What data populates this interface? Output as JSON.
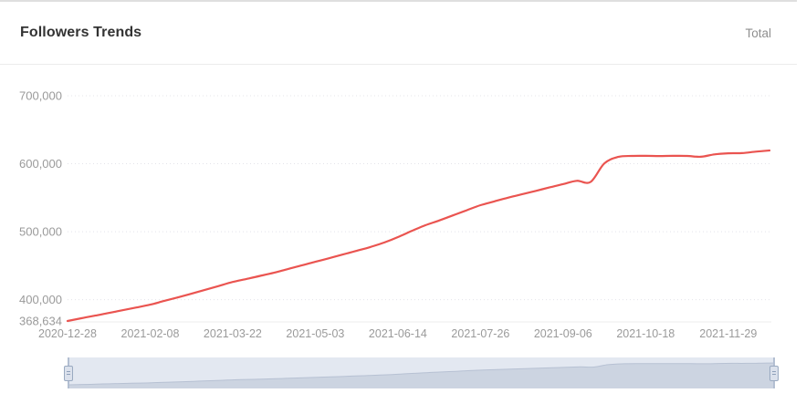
{
  "header": {
    "title": "Followers Trends",
    "legend_total": "Total"
  },
  "colors": {
    "line": "#ea5450",
    "grid": "#e4e4ea",
    "axis_line": "#ededed",
    "axis_text": "#9a9a9a",
    "title_text": "#333333",
    "legend_text": "#8f8f8f",
    "slider_track": "#e3e8f1",
    "slider_area_fill": "#ccd4e1",
    "slider_area_line": "#b7c1d3",
    "slider_handle": "#9aaac1"
  },
  "chart_data": {
    "type": "line",
    "title": "Followers Trends",
    "legend": [
      "Total"
    ],
    "legend_position": "top-right",
    "grid": "dotted-horizontal",
    "y_axis": {
      "min": 368634,
      "min_label": "368,634",
      "top": 700000
    },
    "y_ticks": [
      {
        "value": 700000,
        "label": "700,000",
        "grid": true
      },
      {
        "value": 600000,
        "label": "600,000",
        "grid": true
      },
      {
        "value": 500000,
        "label": "500,000",
        "grid": true
      },
      {
        "value": 400000,
        "label": "400,000",
        "grid": true
      },
      {
        "value": 368634,
        "label": "368,634",
        "grid": false
      }
    ],
    "x_ticks": [
      "2020-12-28",
      "2021-02-08",
      "2021-03-22",
      "2021-05-03",
      "2021-06-14",
      "2021-07-26",
      "2021-09-06",
      "2021-10-18",
      "2021-11-29"
    ],
    "x_tick_every_n_points": 6,
    "series": [
      {
        "name": "Total",
        "color": "#ea5450",
        "smooth": true,
        "x": [
          "2020-12-28",
          "2021-01-04",
          "2021-01-11",
          "2021-01-18",
          "2021-01-25",
          "2021-02-01",
          "2021-02-08",
          "2021-02-15",
          "2021-02-22",
          "2021-03-01",
          "2021-03-08",
          "2021-03-15",
          "2021-03-22",
          "2021-03-29",
          "2021-04-05",
          "2021-04-12",
          "2021-04-19",
          "2021-04-26",
          "2021-05-03",
          "2021-05-10",
          "2021-05-17",
          "2021-05-24",
          "2021-05-31",
          "2021-06-07",
          "2021-06-14",
          "2021-06-21",
          "2021-06-28",
          "2021-07-05",
          "2021-07-12",
          "2021-07-19",
          "2021-07-26",
          "2021-08-02",
          "2021-08-09",
          "2021-08-16",
          "2021-08-23",
          "2021-08-30",
          "2021-09-06",
          "2021-09-13",
          "2021-09-20",
          "2021-09-27",
          "2021-10-04",
          "2021-10-11",
          "2021-10-18",
          "2021-10-25",
          "2021-11-01",
          "2021-11-08",
          "2021-11-15",
          "2021-11-22",
          "2021-11-29",
          "2021-12-06",
          "2021-12-13",
          "2021-12-20"
        ],
        "values": [
          368634,
          372600,
          376500,
          380500,
          384500,
          388500,
          392600,
          398000,
          403300,
          408700,
          414500,
          420200,
          426000,
          430500,
          435000,
          439600,
          445000,
          450300,
          455700,
          461000,
          466400,
          471800,
          477500,
          484000,
          492000,
          501000,
          509500,
          516500,
          524000,
          531500,
          539000,
          544500,
          550000,
          555000,
          560000,
          565000,
          570000,
          574800,
          573200,
          600500,
          610000,
          611500,
          611600,
          611300,
          611600,
          611500,
          610200,
          613800,
          615400,
          615600,
          617800,
          619500
        ]
      }
    ]
  },
  "data_zoom": {
    "start_value": "2020-12-28",
    "end_value": "2021-12-20"
  }
}
